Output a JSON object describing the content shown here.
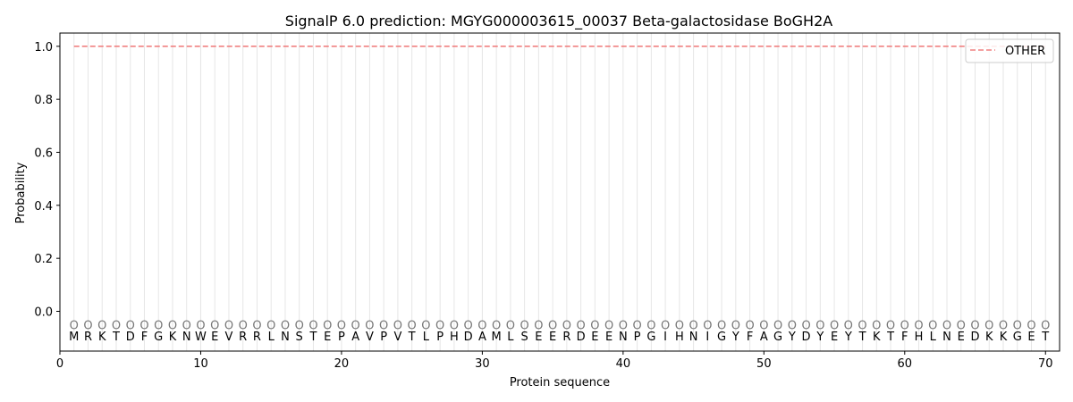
{
  "chart_data": {
    "type": "line",
    "title": "SignalP 6.0 prediction: MGYG000003615_00037 Beta-galactosidase BoGH2A",
    "xlabel": "Protein sequence",
    "ylabel": "Probability",
    "xlim": [
      0,
      71
    ],
    "ylim": [
      -0.15,
      1.05
    ],
    "xticks": [
      0,
      10,
      20,
      30,
      40,
      50,
      60,
      70
    ],
    "yticks": [
      0.0,
      0.2,
      0.4,
      0.6,
      0.8,
      1.0
    ],
    "ytick_labels": [
      "0.0",
      "0.2",
      "0.4",
      "0.6",
      "0.8",
      "1.0"
    ],
    "grid": "vertical lines at each residue",
    "legend_position": "top-right",
    "series": [
      {
        "name": "OTHER",
        "color": "#f08080",
        "style": "dashed",
        "x_start": 1,
        "x_end": 70,
        "value": 1.0
      }
    ],
    "sequence": [
      "M",
      "R",
      "K",
      "T",
      "D",
      "F",
      "G",
      "K",
      "N",
      "W",
      "E",
      "V",
      "R",
      "R",
      "L",
      "N",
      "S",
      "T",
      "E",
      "P",
      "A",
      "V",
      "P",
      "V",
      "T",
      "L",
      "P",
      "H",
      "D",
      "A",
      "M",
      "L",
      "S",
      "E",
      "E",
      "R",
      "D",
      "E",
      "E",
      "N",
      "P",
      "G",
      "I",
      "H",
      "N",
      "I",
      "G",
      "Y",
      "F",
      "A",
      "G",
      "Y",
      "D",
      "Y",
      "E",
      "Y",
      "T",
      "K",
      "T",
      "F",
      "H",
      "L",
      "N",
      "E",
      "D",
      "K",
      "K",
      "G",
      "E",
      "T"
    ],
    "region_labels_y": -0.05,
    "region_label": "O"
  }
}
